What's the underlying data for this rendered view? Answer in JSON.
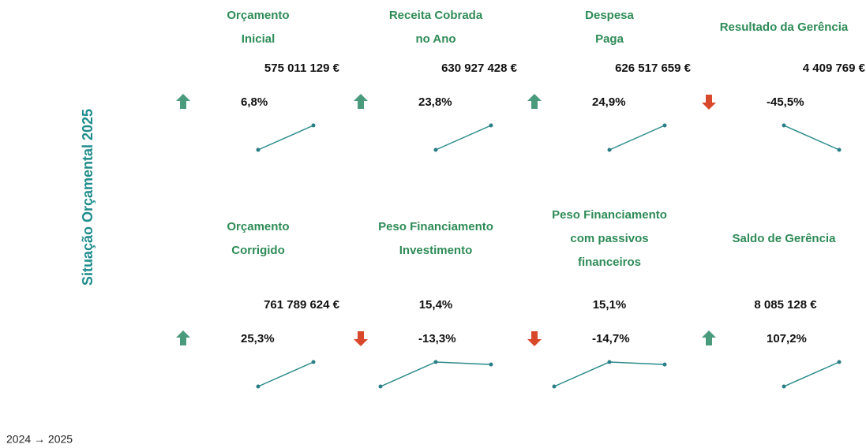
{
  "dashboard": {
    "title": "Situação Orçamental 2025",
    "footer": "2024 → 2025",
    "cards": [
      {
        "title": [
          "Orçamento",
          "Inicial"
        ],
        "value": "575 011 129 €",
        "direction": "up",
        "change": "6,8%",
        "trend": [
          0,
          1
        ]
      },
      {
        "title": [
          "Receita Cobrada",
          "no Ano"
        ],
        "value": "630 927 428 €",
        "direction": "up",
        "change": "23,8%",
        "trend": [
          0,
          1
        ]
      },
      {
        "title": [
          "Despesa",
          "Paga"
        ],
        "value": "626 517 659 €",
        "direction": "up",
        "change": "24,9%",
        "trend": [
          0,
          1
        ]
      },
      {
        "title": [
          "Resultado da Gerência"
        ],
        "value": "4 409 769 €",
        "direction": "down",
        "change": "-45,5%",
        "trend": [
          1,
          0
        ]
      },
      {
        "title": [
          "Orçamento",
          "Corrigido"
        ],
        "value": "761 789 624 €",
        "direction": "up",
        "change": "25,3%",
        "trend": [
          0,
          1
        ]
      },
      {
        "title": [
          "Peso Financiamento",
          "Investimento"
        ],
        "value": "15,4%",
        "direction": "down",
        "change": "-13,3%",
        "trend": [
          0,
          1,
          0.9
        ]
      },
      {
        "title": [
          "Peso Financiamento",
          "com passivos",
          "financeiros"
        ],
        "value": "15,1%",
        "direction": "down",
        "change": "-14,7%",
        "trend": [
          0,
          1,
          0.9
        ]
      },
      {
        "title": [
          "Saldo de Gerência"
        ],
        "value": "8 085 128 €",
        "direction": "up",
        "change": "107,2%",
        "trend": [
          0,
          1
        ]
      }
    ]
  }
}
